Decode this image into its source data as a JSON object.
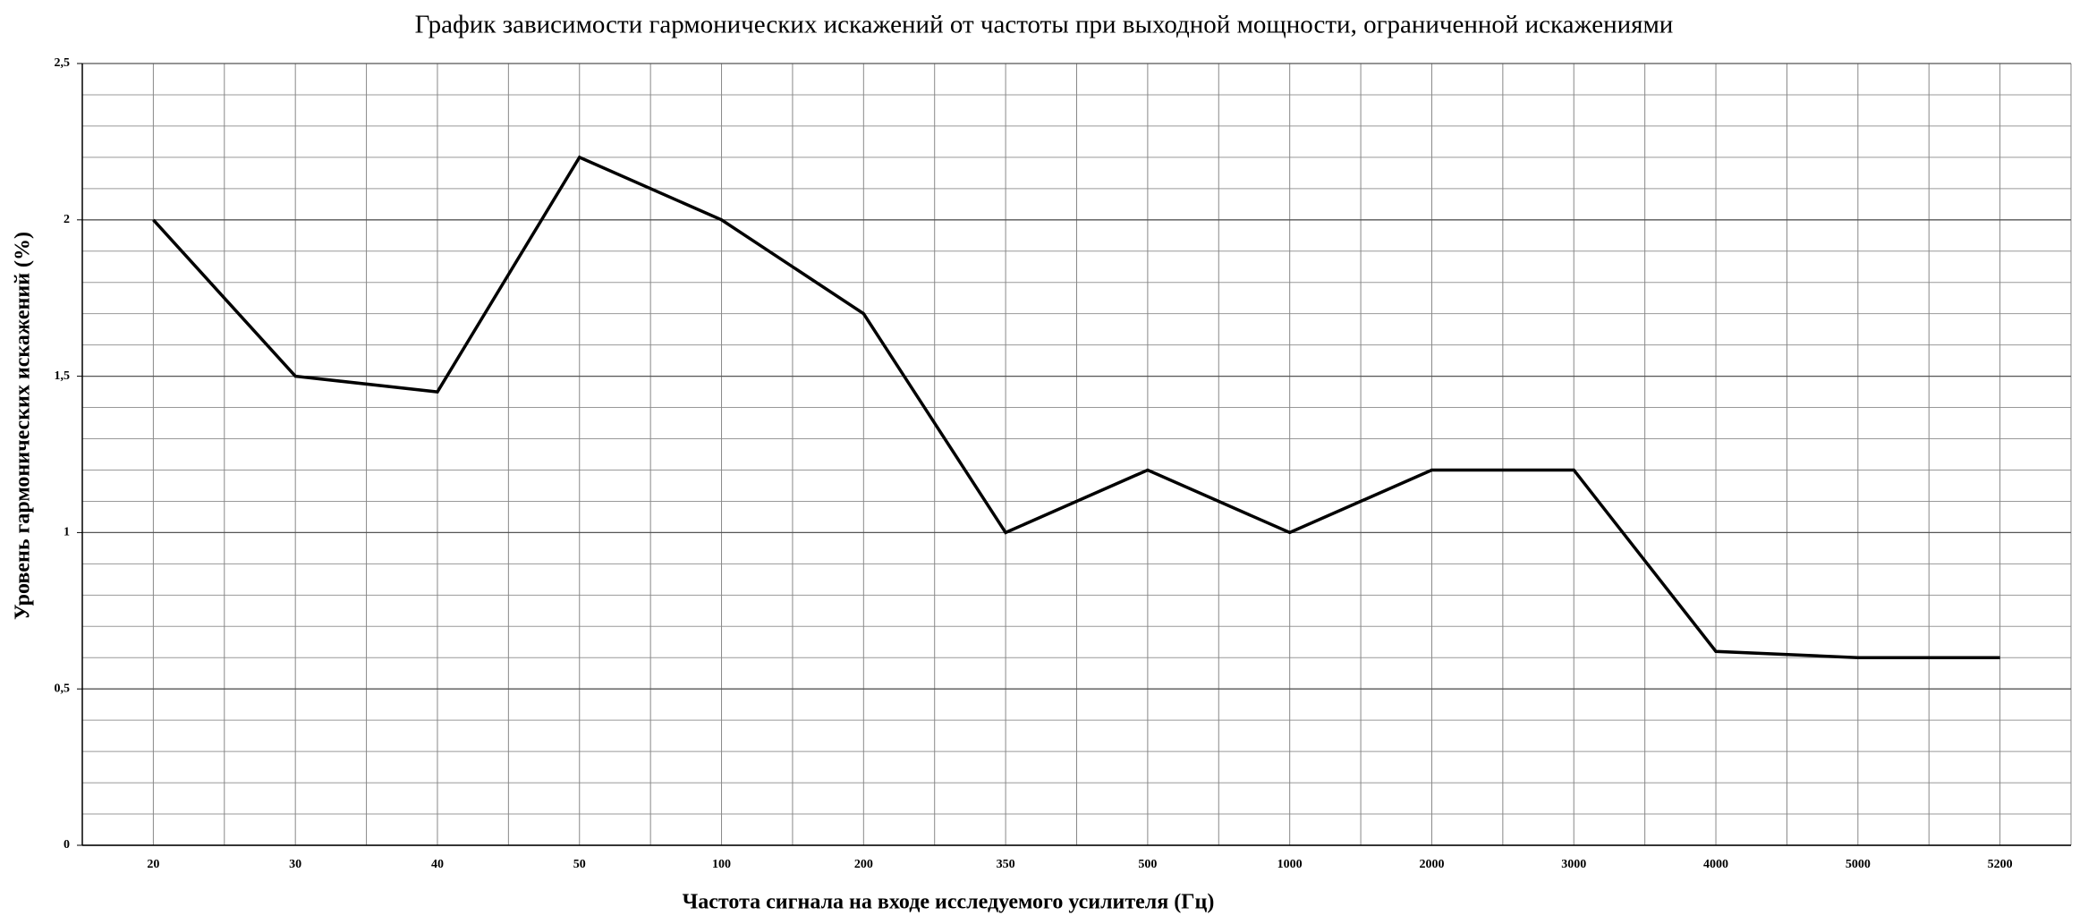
{
  "chart_data": {
    "type": "line",
    "title": "График зависимости гармонических искажений от частоты при выходной мощности, ограниченной искажениями",
    "x_label": "Частота сигнала на входе исследуемого усилителя (Гц)",
    "y_label": "Уровень гармонических искажений (%)",
    "categories": [
      "20",
      "30",
      "40",
      "50",
      "100",
      "200",
      "350",
      "500",
      "1000",
      "2000",
      "3000",
      "4000",
      "5000",
      "5200"
    ],
    "series": [
      {
        "name": "Уровень гармонических искажений",
        "color": "#000000",
        "values": [
          2,
          1.5,
          1.45,
          2.2,
          2,
          1.7,
          1,
          1.2,
          1,
          1.2,
          1.2,
          0.62,
          0.6,
          0.6
        ]
      }
    ],
    "ylim": [
      0,
      2.5
    ],
    "yticks": [
      0,
      {
        "value": 0.5,
        "label": "0,5"
      },
      1,
      {
        "value": 1.5,
        "label": "1,5"
      },
      2,
      {
        "value": 2.5,
        "label": "2,5"
      }
    ],
    "minor_yticks": [
      0.1,
      0.2,
      0.3,
      0.4,
      0.6,
      0.7,
      0.8,
      0.9,
      1.1,
      1.2,
      1.3,
      1.4,
      1.6,
      1.7,
      1.8,
      1.9,
      2.1,
      2.2,
      2.3,
      2.4
    ],
    "grid": true
  }
}
